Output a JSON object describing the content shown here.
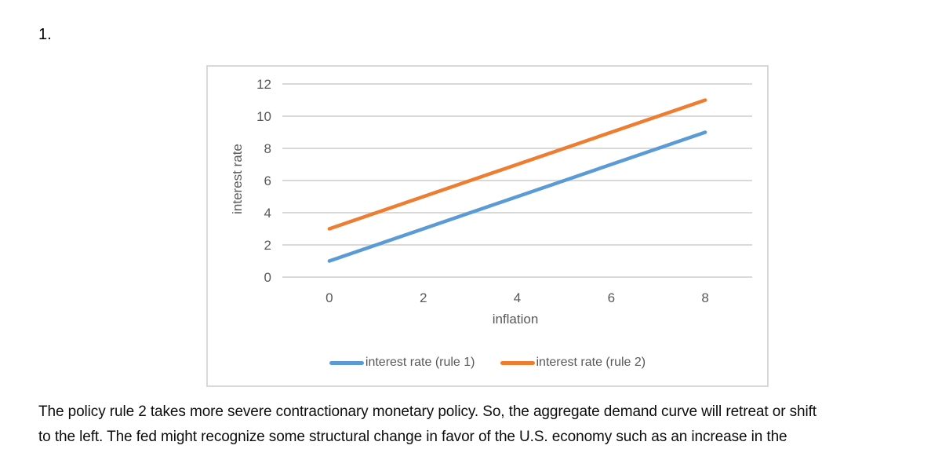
{
  "page": {
    "item_number": "1.",
    "paragraph": {
      "line1": "The policy rule 2 takes more severe contractionary monetary policy. So, the aggregate demand curve will retreat or shift",
      "line2": "to the left. The fed might recognize some structural change in favor of the U.S. economy such as an increase in the"
    }
  },
  "chart_data": {
    "type": "line",
    "title": "",
    "xlabel": "inflation",
    "ylabel": "interest rate",
    "series": [
      {
        "name": "interest rate (rule 1)",
        "color": "#5B9BD5",
        "points": [
          [
            0,
            1
          ],
          [
            8,
            9
          ]
        ]
      },
      {
        "name": "interest rate (rule 2)",
        "color": "#ED7D31",
        "points": [
          [
            0,
            3
          ],
          [
            8,
            11
          ]
        ]
      }
    ],
    "xlim": [
      -1,
      9
    ],
    "ylim": [
      0,
      12
    ],
    "xticks": [
      0,
      2,
      4,
      6,
      8
    ],
    "yticks": [
      0,
      2,
      4,
      6,
      8,
      10,
      12
    ],
    "grid": true,
    "legend_position": "bottom",
    "colors": {
      "gridline": "#D9D9D9",
      "axis_text": "#595959",
      "frame_border": "#D9D9D9"
    }
  }
}
